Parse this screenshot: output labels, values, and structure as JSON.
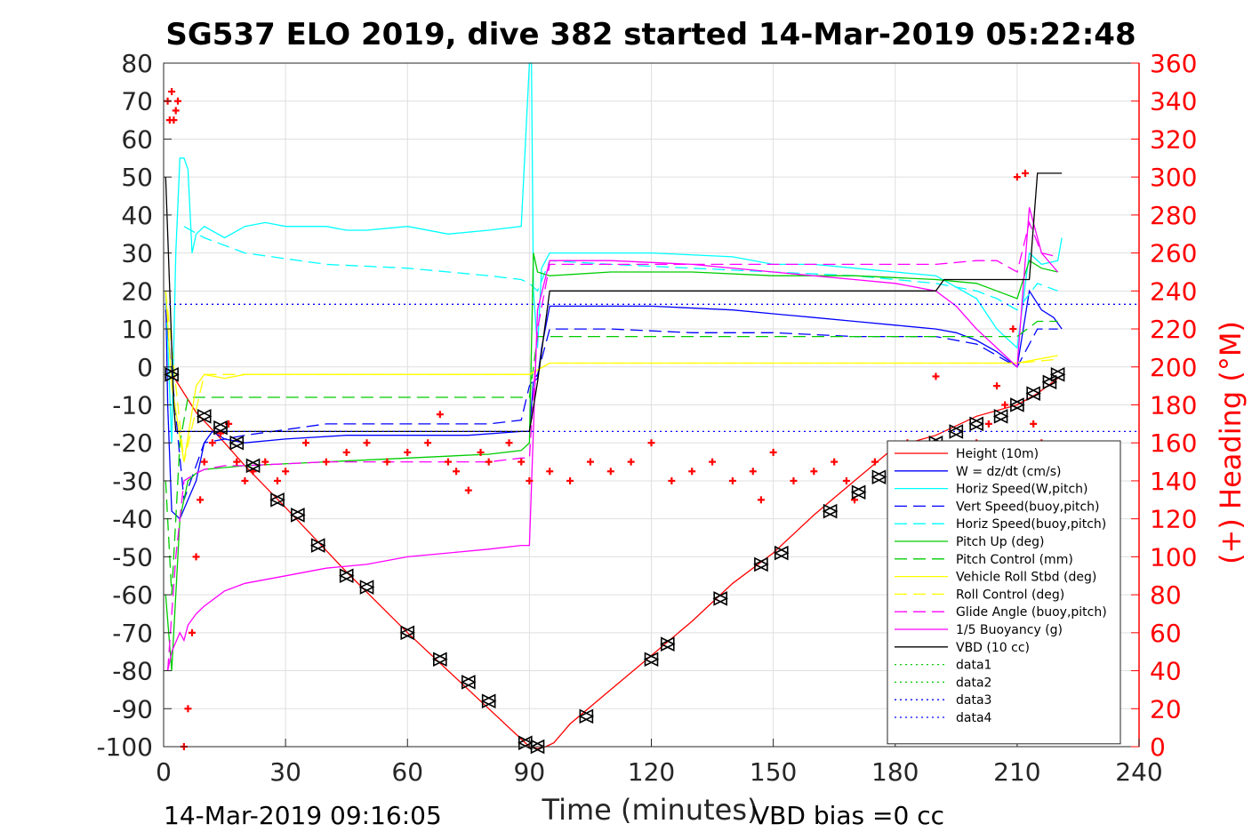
{
  "chart_data": {
    "type": "line",
    "title": "SG537 ELO 2019, dive 382 started 14-Mar-2019 05:22:48",
    "xlabel": "Time (minutes)",
    "ylabel_right": "(+) Heading (°M)",
    "xlim": [
      0,
      240
    ],
    "ylim": [
      -100,
      80
    ],
    "ylim_right": [
      0,
      360
    ],
    "xticks": [
      "0",
      "30",
      "60",
      "90",
      "120",
      "150",
      "180",
      "210",
      "240"
    ],
    "yticks": [
      "80",
      "70",
      "60",
      "50",
      "40",
      "30",
      "20",
      "10",
      "0",
      "-10",
      "-20",
      "-30",
      "-40",
      "-50",
      "-60",
      "-70",
      "-80",
      "-90",
      "-100"
    ],
    "yticks_right": [
      "360",
      "340",
      "320",
      "300",
      "280",
      "260",
      "240",
      "220",
      "200",
      "180",
      "160",
      "140",
      "120",
      "100",
      "80",
      "60",
      "40",
      "20",
      "0"
    ],
    "grid": true,
    "legend_position": "lower-right",
    "footer_left": "14-Mar-2019 09:16:05",
    "footer_right": "VBD bias =0 cc",
    "series": [
      {
        "name": "Height (10m)",
        "color": "#ff0000",
        "style": "solid",
        "x": [
          1.5,
          8,
          15,
          20,
          30,
          45,
          60,
          70,
          80,
          88,
          90,
          92,
          94,
          96,
          100,
          110,
          120,
          130,
          140,
          150,
          160,
          170,
          180,
          190,
          200,
          210,
          215,
          220
        ],
        "y": [
          -1,
          -12,
          -20,
          -26,
          -37,
          -54,
          -70,
          -80,
          -90,
          -98,
          -100,
          -100.5,
          -100,
          -99,
          -94,
          -85,
          -76,
          -67,
          -57,
          -49,
          -39,
          -30,
          -21,
          -18,
          -13,
          -10,
          -7,
          -3
        ]
      },
      {
        "name": "W = dz/dt (cm/s)",
        "color": "#0000ff",
        "style": "solid",
        "x": [
          0.5,
          1,
          2,
          4,
          6,
          8,
          10,
          12,
          15,
          20,
          30,
          45,
          60,
          75,
          88,
          90,
          91,
          92,
          93,
          95,
          100,
          110,
          120,
          140,
          150,
          160,
          170,
          180,
          190,
          195,
          200,
          205,
          210,
          213,
          216,
          219,
          221
        ],
        "y": [
          20,
          -10,
          -38,
          -40,
          -35,
          -30,
          -20,
          -17,
          -19,
          -20,
          -19,
          -18,
          -18,
          -18,
          -17,
          -17,
          -4,
          -3,
          5,
          16,
          16,
          16,
          16,
          15,
          14,
          13,
          12,
          11,
          10,
          9,
          7,
          4,
          0,
          20,
          15,
          13,
          10
        ]
      },
      {
        "name": "Horiz Speed(W,pitch)",
        "color": "#00ffff",
        "style": "solid",
        "x": [
          0.5,
          2,
          3,
          4,
          5,
          6,
          7,
          8,
          10,
          15,
          20,
          25,
          30,
          40,
          45,
          50,
          60,
          70,
          80,
          88,
          90,
          90.5,
          91,
          92,
          93,
          95,
          100,
          120,
          140,
          150,
          160,
          170,
          180,
          190,
          200,
          205,
          210,
          213,
          216,
          220,
          221
        ],
        "y": [
          20,
          -20,
          30,
          55,
          55,
          52,
          30,
          35,
          37,
          34,
          37,
          38,
          37,
          37,
          36,
          36,
          37,
          35,
          36,
          37,
          80,
          80,
          20,
          5,
          26,
          30,
          30,
          30,
          29,
          27,
          27,
          26,
          25,
          24,
          18,
          10,
          5,
          30,
          27,
          28,
          34
        ]
      },
      {
        "name": "Vert Speed(buoy,pitch)",
        "color": "#0000ff",
        "style": "dash",
        "x": [
          0.5,
          5,
          10,
          20,
          40,
          60,
          80,
          88,
          90,
          92,
          95,
          110,
          130,
          150,
          170,
          190,
          200,
          210,
          215,
          220
        ],
        "y": [
          15,
          -35,
          -20,
          -18,
          -15,
          -15,
          -15,
          -14,
          -5,
          -2,
          10,
          10,
          9,
          9,
          8,
          8,
          6,
          0,
          10,
          10
        ]
      },
      {
        "name": "Horiz Speed(buoy,pitch)",
        "color": "#00ffff",
        "style": "dash",
        "x": [
          5,
          10,
          20,
          40,
          60,
          80,
          88,
          90,
          92,
          95,
          110,
          130,
          150,
          170,
          190,
          200,
          205,
          210,
          215,
          220
        ],
        "y": [
          37,
          34,
          30,
          27,
          26,
          24,
          23,
          22,
          20,
          28,
          27,
          26,
          25,
          24,
          22,
          20,
          18,
          15,
          22,
          20
        ]
      },
      {
        "name": "Pitch Up (deg)",
        "color": "#00cc00",
        "style": "solid",
        "x": [
          0.5,
          2,
          4,
          6,
          8,
          10,
          20,
          40,
          60,
          80,
          88,
          90,
          91,
          92,
          95,
          110,
          130,
          150,
          170,
          190,
          200,
          205,
          210,
          213,
          216,
          220
        ],
        "y": [
          -60,
          -80,
          -40,
          -30,
          -28,
          -27,
          -26,
          -25,
          -24,
          -23,
          -22,
          -20,
          30,
          25,
          24,
          25,
          25,
          24,
          24,
          23,
          22,
          20,
          18,
          28,
          26,
          25
        ]
      },
      {
        "name": "Pitch Control (mm)",
        "color": "#00cc00",
        "style": "dash",
        "x": [
          0.5,
          2,
          4,
          6,
          10,
          20,
          40,
          60,
          80,
          88,
          90,
          92,
          95,
          110,
          130,
          150,
          170,
          190,
          200,
          210,
          215,
          220
        ],
        "y": [
          -30,
          -60,
          -20,
          -8,
          -8,
          -8,
          -8,
          -8,
          -8,
          -8,
          -8,
          8,
          8,
          8,
          8,
          8,
          8,
          8,
          8,
          8,
          12,
          12
        ]
      },
      {
        "name": "Vehicle Roll Stbd (deg)",
        "color": "#ffff00",
        "style": "solid",
        "x": [
          0.5,
          2,
          5,
          8,
          10,
          15,
          20,
          30,
          40,
          50,
          60,
          70,
          80,
          88,
          90,
          95,
          100,
          120,
          140,
          160,
          180,
          200,
          210,
          215,
          220
        ],
        "y": [
          20,
          -5,
          -25,
          -5,
          -2,
          -3,
          -2,
          -2,
          -2,
          -2,
          -2,
          -2,
          -2,
          -2,
          -2,
          1,
          1,
          1,
          1,
          1,
          1,
          1,
          1,
          2,
          3
        ]
      },
      {
        "name": "Roll Control (deg)",
        "color": "#ffff00",
        "style": "dash",
        "x": [
          0.5,
          5,
          10,
          20,
          30,
          40,
          50,
          60,
          70,
          80,
          88,
          90,
          95,
          110,
          130,
          150,
          170,
          190,
          210,
          220
        ],
        "y": [
          20,
          -25,
          -2,
          -2,
          -2,
          -2,
          -2,
          -2,
          -2,
          -2,
          -2,
          -2,
          1,
          1,
          1,
          1,
          1,
          1,
          1,
          2
        ]
      },
      {
        "name": "Glide Angle (buoy,pitch)",
        "color": "#ff00ff",
        "style": "dash",
        "x": [
          1,
          3,
          5,
          8,
          10,
          15,
          20,
          40,
          60,
          80,
          88,
          90,
          92,
          95,
          110,
          130,
          150,
          170,
          190,
          200,
          205,
          210,
          213,
          216,
          220
        ],
        "y": [
          -80,
          -50,
          -30,
          -28,
          -27,
          -26,
          -26,
          -25,
          -25,
          -25,
          -24,
          -24,
          10,
          27,
          27,
          27,
          27,
          27,
          27,
          28,
          28,
          25,
          38,
          30,
          29
        ]
      },
      {
        "name": "1/5 Buoyancy (g)",
        "color": "#ff00ff",
        "style": "solid",
        "x": [
          1,
          2,
          4,
          5,
          6,
          8,
          10,
          15,
          20,
          30,
          40,
          50,
          60,
          70,
          80,
          88,
          90,
          92,
          95,
          110,
          130,
          150,
          170,
          180,
          190,
          195,
          200,
          205,
          210,
          213,
          216,
          220
        ],
        "y": [
          -80,
          -75,
          -70,
          -72,
          -68,
          -65,
          -63,
          -59,
          -57,
          -55,
          -53,
          -52,
          -50,
          -49,
          -48,
          -47,
          -47,
          15,
          28,
          28,
          27,
          25,
          23,
          22,
          20,
          16,
          10,
          5,
          0,
          42,
          30,
          25
        ]
      },
      {
        "name": "VBD (10 cc)",
        "color": "#000000",
        "style": "solid",
        "x": [
          0.5,
          1.5,
          2.5,
          3,
          10,
          20,
          40,
          60,
          80,
          88,
          90,
          92,
          95,
          110,
          130,
          150,
          170,
          190,
          192,
          200,
          208,
          209,
          213,
          215,
          217,
          221
        ],
        "y": [
          50,
          20,
          -10,
          -17,
          -17,
          -17,
          -17,
          -17,
          -17,
          -17,
          -17,
          -4,
          20,
          20,
          20,
          20,
          20,
          20,
          23,
          23,
          23,
          23,
          23,
          51,
          51,
          51
        ]
      },
      {
        "name": "data1",
        "color": "#00cc00",
        "style": "dot",
        "x": [],
        "y": []
      },
      {
        "name": "data2",
        "color": "#00cc00",
        "style": "dot",
        "x": [],
        "y": []
      },
      {
        "name": "data3",
        "color": "#0000ff",
        "style": "dot",
        "x": [
          0,
          240
        ],
        "y": [
          -17,
          -17
        ]
      },
      {
        "name": "data4",
        "color": "#0000ff",
        "style": "dot",
        "x": [
          0,
          240
        ],
        "y": [
          16.5,
          16.5
        ]
      }
    ],
    "heading": {
      "color": "#ff0000",
      "marker": "+",
      "axis": "right",
      "x": [
        1,
        1.5,
        2,
        2.5,
        3,
        3.5,
        5,
        6,
        7,
        8,
        9,
        10,
        12,
        14,
        16,
        18,
        20,
        22,
        25,
        28,
        30,
        35,
        40,
        45,
        50,
        55,
        60,
        65,
        68,
        70,
        72,
        75,
        78,
        80,
        85,
        88,
        90,
        95,
        100,
        105,
        110,
        115,
        120,
        125,
        130,
        135,
        140,
        145,
        147,
        150,
        155,
        160,
        165,
        168,
        170,
        175,
        180,
        183,
        186,
        188,
        190,
        193,
        196,
        200,
        203,
        205,
        207,
        209,
        210,
        212,
        214,
        216,
        218,
        220
      ],
      "y": [
        340,
        330,
        345,
        330,
        335,
        340,
        0,
        20,
        60,
        100,
        130,
        150,
        160,
        165,
        170,
        150,
        140,
        145,
        150,
        140,
        145,
        160,
        150,
        155,
        160,
        150,
        155,
        160,
        175,
        150,
        145,
        135,
        155,
        150,
        160,
        150,
        140,
        145,
        140,
        150,
        145,
        150,
        160,
        140,
        145,
        150,
        140,
        145,
        130,
        155,
        140,
        145,
        150,
        140,
        130,
        150,
        145,
        160,
        130,
        150,
        195,
        150,
        155,
        160,
        170,
        190,
        180,
        220,
        300,
        302,
        170,
        160,
        150,
        145
      ]
    },
    "depth_markers": {
      "x": [
        2,
        10,
        14,
        18,
        22,
        28,
        33,
        38,
        45,
        50,
        60,
        68,
        75,
        80,
        89,
        92,
        104,
        120,
        124,
        137,
        147,
        152,
        164,
        171,
        176,
        190,
        195,
        200,
        206,
        210,
        214,
        218,
        220
      ],
      "y": [
        -2,
        -13,
        -16,
        -20,
        -26,
        -35,
        -39,
        -47,
        -55,
        -58,
        -70,
        -77,
        -83,
        -88,
        -99,
        -100,
        -92,
        -77,
        -73,
        -61,
        -52,
        -49,
        -38,
        -33,
        -29,
        -20,
        -17,
        -15,
        -13,
        -10,
        -7,
        -4,
        -2
      ]
    }
  }
}
